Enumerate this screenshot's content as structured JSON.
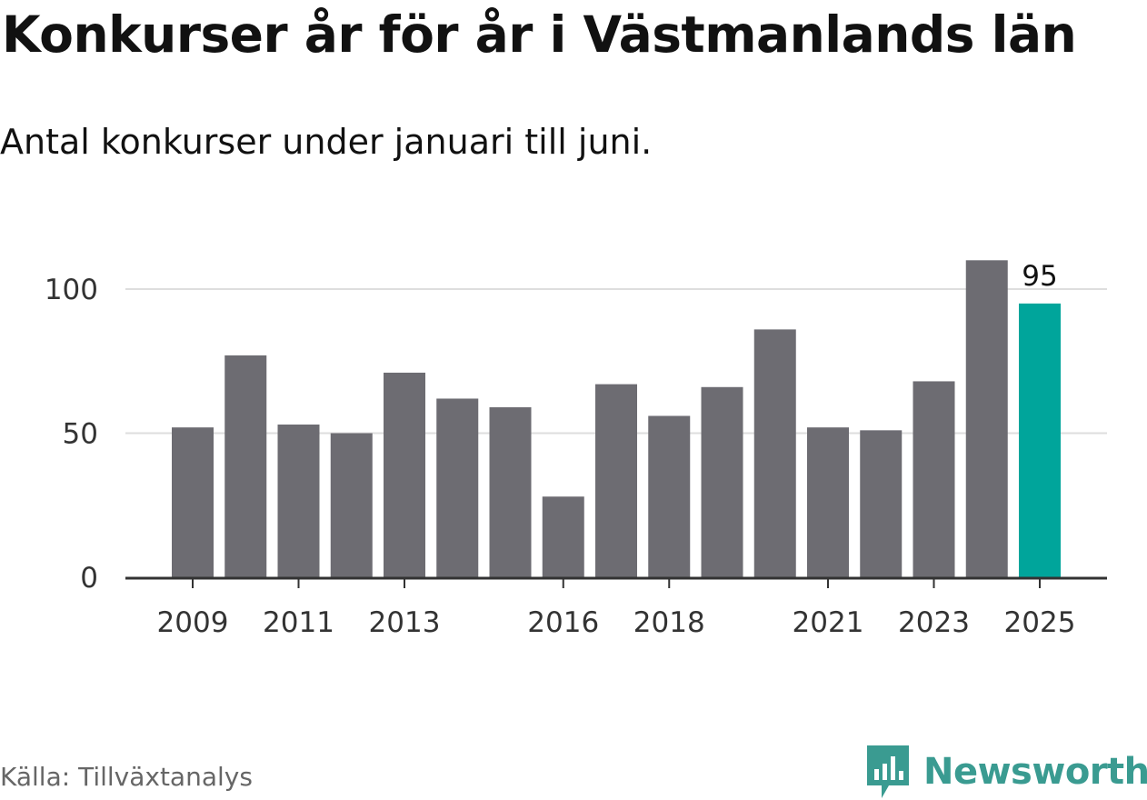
{
  "title": "Konkurser år för år i Västmanlands län",
  "subtitle": "Antal konkurser under januari till juni.",
  "source": "Källa: Tillväxtanalys",
  "brand": {
    "name": "Newsworthy",
    "icon": "bar-chart-logo-icon",
    "color": "#3a9b91"
  },
  "chart_data": {
    "type": "bar",
    "categories": [
      "2009",
      "2010",
      "2011",
      "2012",
      "2013",
      "2014",
      "2015",
      "2016",
      "2017",
      "2018",
      "2019",
      "2020",
      "2021",
      "2022",
      "2023",
      "2024",
      "2025"
    ],
    "values": [
      52,
      77,
      53,
      50,
      71,
      62,
      59,
      28,
      67,
      56,
      66,
      86,
      52,
      51,
      68,
      110,
      95
    ],
    "x_tick_labels": [
      "2009",
      "2011",
      "2013",
      "2016",
      "2018",
      "2021",
      "2023",
      "2025"
    ],
    "y_ticks": [
      0,
      50,
      100
    ],
    "ylim": [
      0,
      110
    ],
    "highlight": {
      "category": "2025",
      "value_label": "95"
    },
    "bar_color": "#6d6c72",
    "highlight_color": "#00a59b",
    "grid": true,
    "title": "Konkurser år för år i Västmanlands län",
    "xlabel": "",
    "ylabel": ""
  }
}
